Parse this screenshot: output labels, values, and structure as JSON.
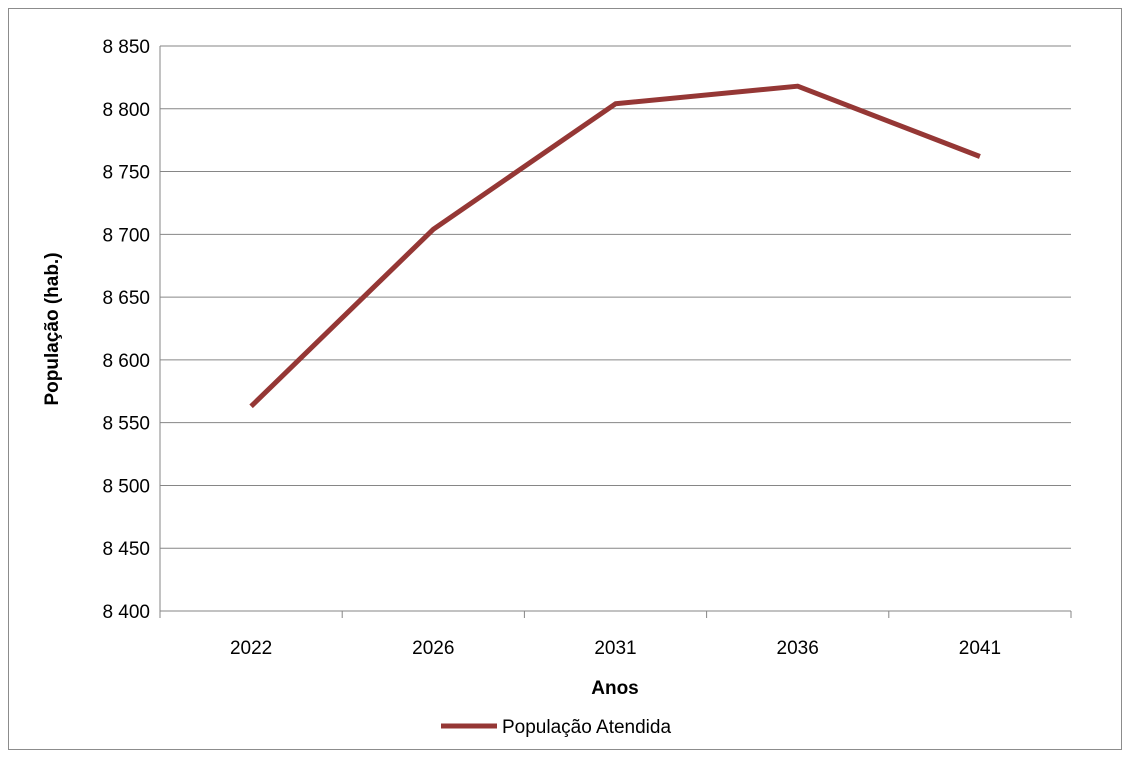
{
  "chart_data": {
    "type": "line",
    "title": "",
    "xlabel": "Anos",
    "ylabel": "População (hab.)",
    "categories": [
      "2022",
      "2026",
      "2031",
      "2036",
      "2041"
    ],
    "series": [
      {
        "name": "População Atendida",
        "values": [
          8563,
          8704,
          8804,
          8818,
          8762
        ],
        "color": "#953735"
      }
    ],
    "ylim": [
      8400,
      8850
    ],
    "yticks": [
      8400,
      8450,
      8500,
      8550,
      8600,
      8650,
      8700,
      8750,
      8800,
      8850
    ],
    "ytick_labels": [
      "8 400",
      "8 450",
      "8 500",
      "8 550",
      "8 600",
      "8 650",
      "8 700",
      "8 750",
      "8 800",
      "8 850"
    ],
    "grid": true,
    "legend_position": "bottom"
  },
  "colors": {
    "gridline": "#868686",
    "series": "#953735"
  }
}
